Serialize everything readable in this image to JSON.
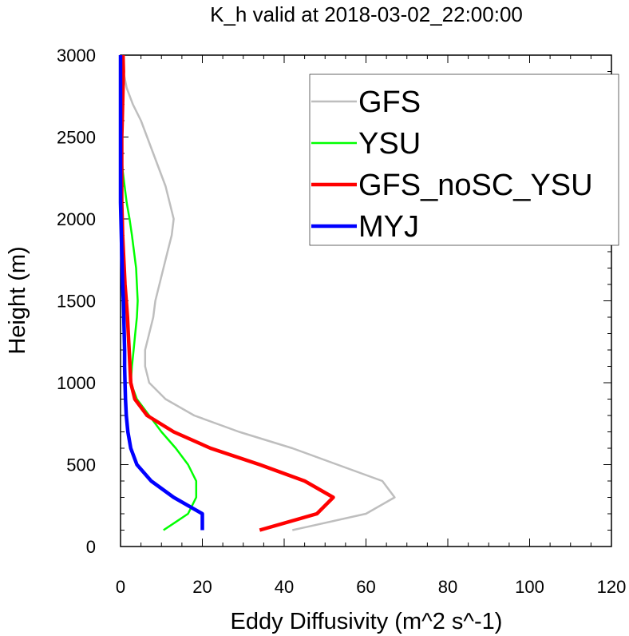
{
  "chart_data": {
    "type": "line",
    "title": "K_h valid at 2018-03-02_22:00:00",
    "xlabel": "Eddy Diffusivity (m^2 s^-1)",
    "ylabel": "Height (m)",
    "xlim": [
      0,
      120
    ],
    "ylim": [
      0,
      3000
    ],
    "x_ticks": [
      "0",
      "20",
      "40",
      "60",
      "80",
      "100",
      "120"
    ],
    "y_ticks": [
      "0",
      "500",
      "1000",
      "1500",
      "2000",
      "2500",
      "3000"
    ],
    "grid": false,
    "legend_position": "top-right",
    "series": [
      {
        "name": "GFS",
        "color": "#bebebe",
        "points": [
          [
            42,
            100
          ],
          [
            60,
            200
          ],
          [
            67,
            300
          ],
          [
            64,
            400
          ],
          [
            53,
            500
          ],
          [
            42,
            600
          ],
          [
            29,
            700
          ],
          [
            18,
            800
          ],
          [
            11,
            900
          ],
          [
            7,
            1000
          ],
          [
            6,
            1100
          ],
          [
            6,
            1200
          ],
          [
            7,
            1300
          ],
          [
            8,
            1400
          ],
          [
            8.5,
            1500
          ],
          [
            9.5,
            1600
          ],
          [
            10.5,
            1700
          ],
          [
            11.5,
            1800
          ],
          [
            12.5,
            1900
          ],
          [
            13,
            2000
          ],
          [
            12,
            2100
          ],
          [
            11,
            2200
          ],
          [
            9.5,
            2300
          ],
          [
            8,
            2400
          ],
          [
            6.5,
            2500
          ],
          [
            5,
            2600
          ],
          [
            3,
            2700
          ],
          [
            1.5,
            2800
          ],
          [
            0.7,
            2900
          ],
          [
            0.3,
            3000
          ]
        ]
      },
      {
        "name": "YSU",
        "color": "#00ff00",
        "points": [
          [
            10.5,
            100
          ],
          [
            13.5,
            150
          ],
          [
            16.5,
            200
          ],
          [
            18.5,
            300
          ],
          [
            18.5,
            400
          ],
          [
            16.5,
            500
          ],
          [
            13.5,
            600
          ],
          [
            10,
            700
          ],
          [
            7,
            800
          ],
          [
            4,
            900
          ],
          [
            2.5,
            1000
          ],
          [
            2.8,
            1100
          ],
          [
            3.2,
            1200
          ],
          [
            3.6,
            1300
          ],
          [
            4,
            1400
          ],
          [
            4.2,
            1500
          ],
          [
            4,
            1600
          ],
          [
            3.8,
            1700
          ],
          [
            3.3,
            1800
          ],
          [
            2.8,
            1900
          ],
          [
            2.2,
            2000
          ],
          [
            1.5,
            2100
          ],
          [
            1,
            2200
          ],
          [
            0.5,
            2300
          ],
          [
            0.3,
            2400
          ],
          [
            0.3,
            2500
          ],
          [
            0.3,
            2600
          ],
          [
            0.3,
            2700
          ],
          [
            0.3,
            2800
          ],
          [
            0.3,
            2900
          ],
          [
            0.3,
            3000
          ]
        ]
      },
      {
        "name": "GFS_noSC_YSU",
        "color": "#ff0000",
        "points": [
          [
            34,
            100
          ],
          [
            48,
            200
          ],
          [
            52,
            300
          ],
          [
            45,
            400
          ],
          [
            34,
            500
          ],
          [
            22,
            600
          ],
          [
            13,
            700
          ],
          [
            6.5,
            800
          ],
          [
            3.5,
            900
          ],
          [
            2.5,
            1000
          ],
          [
            2.3,
            1100
          ],
          [
            2.1,
            1200
          ],
          [
            1.9,
            1300
          ],
          [
            1.7,
            1400
          ],
          [
            1.4,
            1500
          ],
          [
            1.1,
            1600
          ],
          [
            0.9,
            1700
          ],
          [
            0.7,
            1800
          ],
          [
            0.5,
            1900
          ],
          [
            0.4,
            2000
          ],
          [
            0.3,
            2100
          ],
          [
            0.3,
            2200
          ],
          [
            0.3,
            2300
          ],
          [
            0.3,
            2400
          ],
          [
            0.3,
            2500
          ],
          [
            0.4,
            2600
          ],
          [
            0.5,
            2700
          ],
          [
            0.6,
            2800
          ],
          [
            0.7,
            2900
          ],
          [
            0.6,
            3000
          ]
        ]
      },
      {
        "name": "MYJ",
        "color": "#0000ff",
        "points": [
          [
            20,
            100
          ],
          [
            20,
            200
          ],
          [
            13,
            300
          ],
          [
            7.5,
            400
          ],
          [
            4,
            500
          ],
          [
            2.5,
            600
          ],
          [
            1.8,
            700
          ],
          [
            1.4,
            800
          ],
          [
            1.2,
            900
          ],
          [
            1.1,
            1000
          ],
          [
            1,
            1100
          ],
          [
            1,
            1200
          ],
          [
            0.9,
            1300
          ],
          [
            0.8,
            1400
          ],
          [
            0.7,
            1500
          ],
          [
            0.5,
            1600
          ],
          [
            0.4,
            1700
          ],
          [
            0.3,
            1800
          ],
          [
            0.2,
            1900
          ],
          [
            0.1,
            2000
          ],
          [
            0,
            2100
          ],
          [
            0,
            2200
          ],
          [
            0,
            2300
          ],
          [
            0,
            2400
          ],
          [
            0,
            2500
          ],
          [
            0,
            2600
          ],
          [
            0,
            2700
          ],
          [
            0,
            2800
          ],
          [
            0,
            2900
          ],
          [
            0,
            3000
          ]
        ]
      }
    ]
  }
}
